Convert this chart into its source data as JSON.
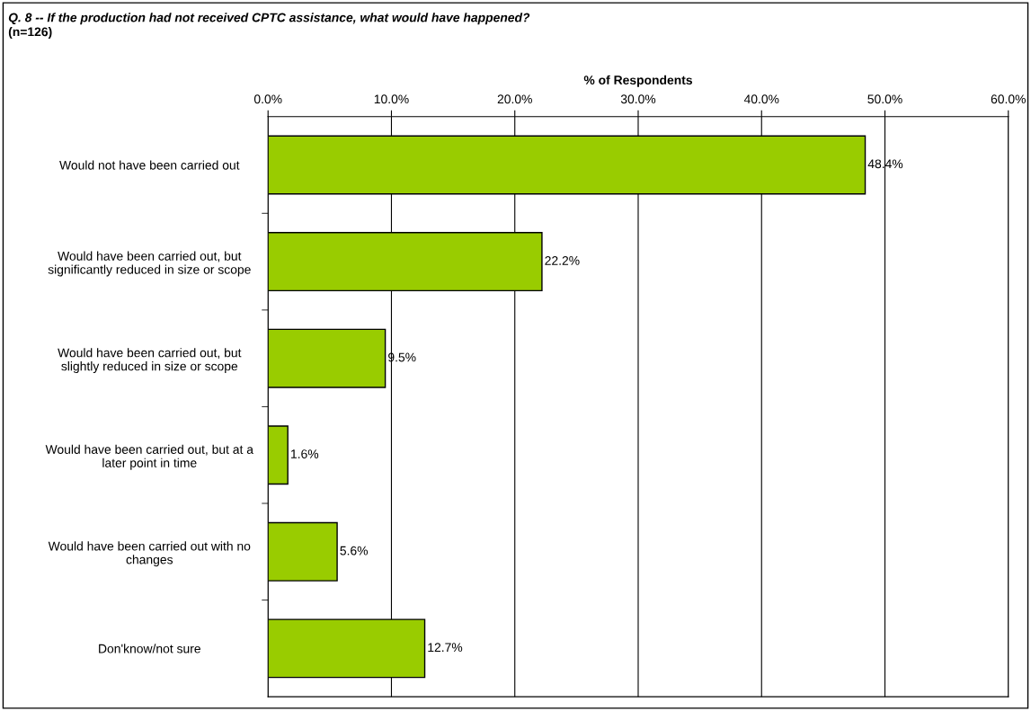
{
  "chart_data": {
    "type": "bar",
    "orientation": "horizontal",
    "title": "Q. 8 -- If the production had not received CPTC assistance, what would have happened?",
    "subtitle": "(n=126)",
    "xlabel": "% of Respondents",
    "categories": [
      "Would not have been carried out",
      "Would have been carried out, but\nsignificantly reduced in size or scope",
      "Would have been carried out, but\nslightly reduced in size or scope",
      "Would have been carried out, but at a\nlater point in time",
      "Would have been carried out with no\nchanges",
      "Don'know/not sure"
    ],
    "values": [
      48.4,
      22.2,
      9.5,
      1.6,
      5.6,
      12.7
    ],
    "value_labels": [
      "48.4%",
      "22.2%",
      "9.5%",
      "1.6%",
      "5.6%",
      "12.7%"
    ],
    "color": "#99cc00",
    "xlim": [
      0,
      60
    ],
    "xticks": [
      {
        "value": 0,
        "label": "0.0%"
      },
      {
        "value": 10,
        "label": "10.0%"
      },
      {
        "value": 20,
        "label": "20.0%"
      },
      {
        "value": 30,
        "label": "30.0%"
      },
      {
        "value": 40,
        "label": "40.0%"
      },
      {
        "value": 50,
        "label": "50.0%"
      },
      {
        "value": 60,
        "label": "60.0%"
      }
    ],
    "grid": "x"
  }
}
